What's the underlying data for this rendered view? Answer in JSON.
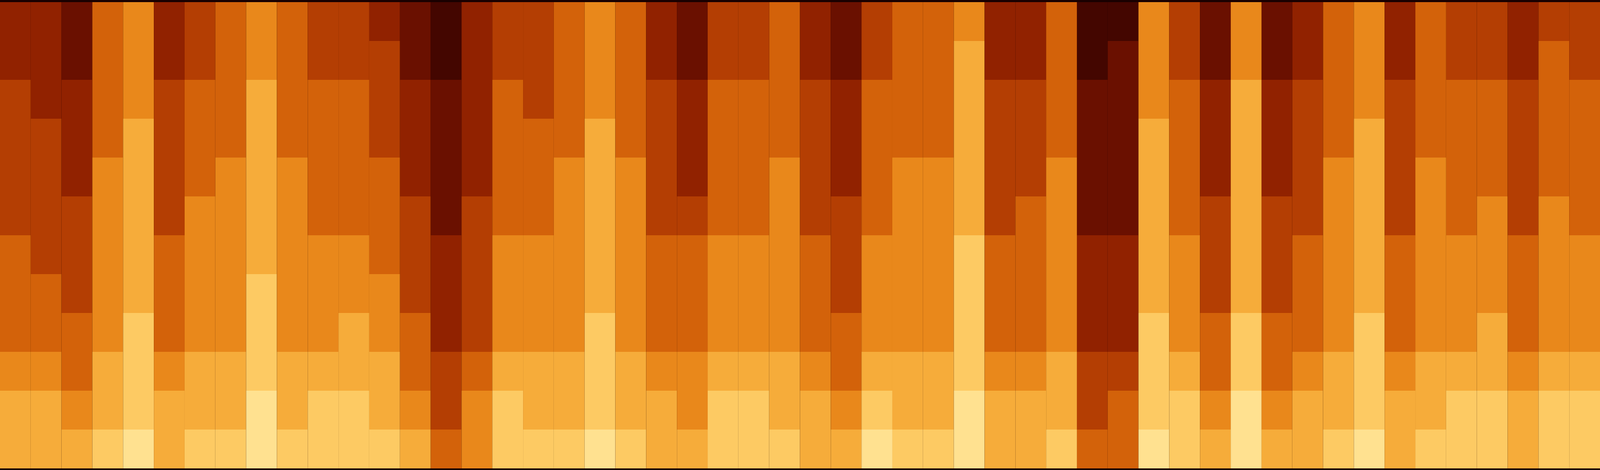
{
  "chart_data": {
    "type": "heatmap",
    "tick_labels": false,
    "value_range": [
      0,
      10
    ],
    "cells": [
      [
        7,
        7,
        6,
        5,
        5,
        5,
        4,
        4,
        4,
        4,
        3,
        3
      ],
      [
        7,
        7,
        6,
        5,
        5,
        4,
        4,
        4,
        4,
        3,
        3,
        3
      ],
      [
        7,
        6,
        5,
        5,
        4,
        4,
        4,
        3,
        3,
        3,
        2,
        2
      ],
      [
        8,
        7,
        7,
        6,
        6,
        6,
        6,
        6,
        5,
        5,
        5,
        5
      ],
      [
        9,
        8,
        8,
        8,
        7,
        7,
        7,
        7,
        7,
        6,
        6,
        6
      ],
      [
        7,
        7,
        6,
        5,
        5,
        5,
        4,
        4,
        4,
        4,
        3,
        3
      ],
      [
        8,
        7,
        7,
        6,
        6,
        6,
        6,
        5,
        5,
        5,
        4,
        4
      ],
      [
        8,
        7,
        7,
        6,
        6,
        6,
        6,
        6,
        5,
        5,
        5,
        5
      ],
      [
        9,
        9,
        8,
        8,
        8,
        7,
        7,
        7,
        7,
        7,
        6,
        6
      ],
      [
        8,
        7,
        7,
        6,
        6,
        6,
        6,
        6,
        5,
        5,
        5,
        5
      ],
      [
        8,
        8,
        7,
        6,
        6,
        6,
        5,
        5,
        5,
        5,
        4,
        4
      ],
      [
        8,
        8,
        7,
        7,
        6,
        6,
        5,
        5,
        5,
        5,
        4,
        4
      ],
      [
        8,
        7,
        7,
        6,
        6,
        5,
        5,
        5,
        4,
        4,
        4,
        3
      ],
      [
        7,
        6,
        5,
        5,
        4,
        4,
        4,
        3,
        3,
        3,
        2,
        2
      ],
      [
        5,
        4,
        4,
        3,
        3,
        3,
        2,
        2,
        2,
        2,
        1,
        1
      ],
      [
        6,
        6,
        5,
        4,
        4,
        4,
        4,
        3,
        3,
        3,
        3,
        3
      ],
      [
        8,
        8,
        7,
        6,
        6,
        6,
        5,
        5,
        5,
        5,
        4,
        4
      ],
      [
        8,
        7,
        7,
        6,
        6,
        6,
        5,
        5,
        5,
        4,
        4,
        4
      ],
      [
        8,
        7,
        7,
        6,
        6,
        6,
        6,
        6,
        5,
        5,
        5,
        5
      ],
      [
        9,
        8,
        8,
        8,
        7,
        7,
        7,
        7,
        7,
        6,
        6,
        6
      ],
      [
        8,
        7,
        7,
        6,
        6,
        6,
        6,
        6,
        5,
        5,
        5,
        5
      ],
      [
        7,
        7,
        6,
        5,
        5,
        5,
        4,
        4,
        4,
        4,
        3,
        3
      ],
      [
        7,
        6,
        6,
        5,
        5,
        5,
        4,
        3,
        3,
        3,
        2,
        2
      ],
      [
        8,
        8,
        7,
        6,
        6,
        6,
        5,
        5,
        5,
        5,
        4,
        4
      ],
      [
        8,
        8,
        7,
        6,
        6,
        6,
        5,
        5,
        5,
        5,
        4,
        4
      ],
      [
        8,
        7,
        7,
        6,
        6,
        6,
        6,
        6,
        5,
        5,
        5,
        5
      ],
      [
        7,
        7,
        6,
        5,
        5,
        5,
        4,
        4,
        4,
        4,
        3,
        3
      ],
      [
        7,
        6,
        5,
        5,
        4,
        4,
        4,
        3,
        3,
        3,
        2,
        2
      ],
      [
        9,
        8,
        7,
        6,
        6,
        6,
        5,
        5,
        5,
        5,
        4,
        4
      ],
      [
        8,
        7,
        7,
        6,
        6,
        6,
        6,
        6,
        5,
        5,
        5,
        5
      ],
      [
        8,
        7,
        7,
        6,
        6,
        6,
        6,
        6,
        5,
        5,
        5,
        5
      ],
      [
        9,
        9,
        8,
        8,
        8,
        8,
        7,
        7,
        7,
        7,
        7,
        6
      ],
      [
        7,
        7,
        6,
        5,
        5,
        5,
        4,
        4,
        4,
        4,
        3,
        3
      ],
      [
        7,
        7,
        6,
        5,
        5,
        5,
        5,
        4,
        4,
        4,
        3,
        3
      ],
      [
        8,
        7,
        7,
        6,
        6,
        6,
        6,
        6,
        5,
        5,
        5,
        5
      ],
      [
        5,
        4,
        4,
        3,
        3,
        3,
        2,
        2,
        2,
        2,
        1,
        1
      ],
      [
        5,
        5,
        4,
        3,
        3,
        3,
        2,
        2,
        2,
        2,
        2,
        1
      ],
      [
        9,
        8,
        8,
        8,
        7,
        7,
        7,
        7,
        7,
        6,
        6,
        6
      ],
      [
        8,
        8,
        7,
        6,
        6,
        6,
        5,
        5,
        5,
        5,
        4,
        4
      ],
      [
        7,
        6,
        5,
        5,
        4,
        4,
        4,
        3,
        3,
        3,
        2,
        2
      ],
      [
        9,
        9,
        8,
        8,
        7,
        7,
        7,
        7,
        7,
        7,
        6,
        6
      ],
      [
        7,
        6,
        5,
        5,
        4,
        4,
        4,
        3,
        3,
        3,
        2,
        2
      ],
      [
        7,
        7,
        6,
        5,
        5,
        5,
        4,
        4,
        4,
        4,
        3,
        3
      ],
      [
        8,
        7,
        7,
        6,
        6,
        6,
        6,
        6,
        5,
        5,
        5,
        5
      ],
      [
        9,
        8,
        8,
        8,
        7,
        7,
        7,
        7,
        7,
        6,
        6,
        6
      ],
      [
        7,
        7,
        6,
        5,
        5,
        5,
        4,
        4,
        4,
        4,
        3,
        3
      ],
      [
        8,
        7,
        7,
        6,
        6,
        6,
        6,
        6,
        5,
        5,
        5,
        5
      ],
      [
        8,
        8,
        7,
        6,
        6,
        6,
        5,
        5,
        5,
        5,
        4,
        4
      ],
      [
        8,
        8,
        7,
        7,
        6,
        6,
        6,
        5,
        5,
        5,
        4,
        4
      ],
      [
        7,
        7,
        6,
        5,
        5,
        5,
        4,
        4,
        4,
        4,
        3,
        3
      ],
      [
        8,
        8,
        7,
        6,
        6,
        6,
        6,
        5,
        5,
        5,
        5,
        4
      ],
      [
        8,
        8,
        7,
        6,
        6,
        6,
        5,
        5,
        5,
        5,
        4,
        4
      ]
    ]
  }
}
